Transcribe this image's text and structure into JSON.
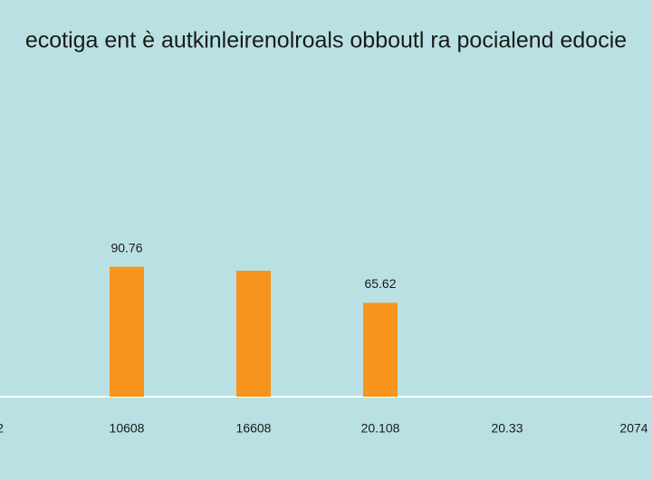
{
  "chart_data": {
    "type": "bar",
    "title": "ecotiga ent è autkinleirenolroals obboutl ra pocialend edocie",
    "categories": [
      "2",
      "10608",
      "16608",
      "20.108",
      "20.33",
      "2074"
    ],
    "values": [
      null,
      90.76,
      88,
      65.62,
      null,
      null
    ],
    "value_labels": [
      null,
      "90.76",
      null,
      "65.62",
      null,
      null
    ],
    "color": "#f7941d",
    "ylim": [
      0,
      100
    ]
  }
}
